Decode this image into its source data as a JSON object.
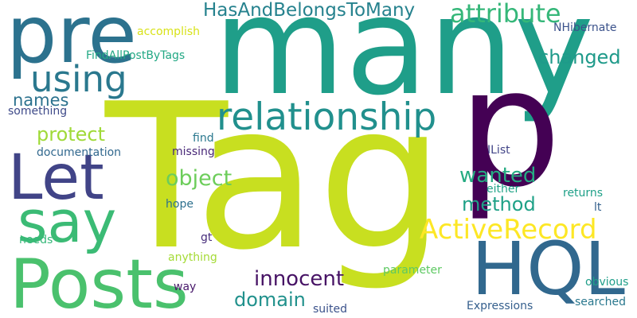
{
  "words": [
    {
      "text": "Tag",
      "color": "#c8df20"
    },
    {
      "text": "many",
      "color": "#1f9e89"
    },
    {
      "text": "p",
      "color": "#440154"
    },
    {
      "text": "pre",
      "color": "#2c728e"
    },
    {
      "text": "Posts",
      "color": "#4ac16d"
    },
    {
      "text": "Let",
      "color": "#414487"
    },
    {
      "text": "say",
      "color": "#3bbb75"
    },
    {
      "text": "HQL",
      "color": "#31688e"
    },
    {
      "text": "relationship",
      "color": "#21908d"
    },
    {
      "text": "using",
      "color": "#2a788e"
    },
    {
      "text": "ActiveRecord",
      "color": "#fde725"
    },
    {
      "text": "HasAndBelongsToMany",
      "color": "#26828e"
    },
    {
      "text": "attribute",
      "color": "#35b779"
    },
    {
      "text": "changed",
      "color": "#1f9a8a"
    },
    {
      "text": "innocent",
      "color": "#471365"
    },
    {
      "text": "protect",
      "color": "#a0da39"
    },
    {
      "text": "object",
      "color": "#6ccd5a"
    },
    {
      "text": "wanted",
      "color": "#25ab82"
    },
    {
      "text": "method",
      "color": "#1fa187"
    },
    {
      "text": "names",
      "color": "#2c728e"
    },
    {
      "text": "domain",
      "color": "#21918c"
    },
    {
      "text": "accomplish",
      "color": "#d8e219"
    },
    {
      "text": "NHibernate",
      "color": "#3b528b"
    },
    {
      "text": "FindAllPostByTags",
      "color": "#22a884"
    },
    {
      "text": "something",
      "color": "#3e4a89"
    },
    {
      "text": "documentation",
      "color": "#31688e"
    },
    {
      "text": "find",
      "color": "#2a788e"
    },
    {
      "text": "missing",
      "color": "#482878"
    },
    {
      "text": "IList",
      "color": "#414487"
    },
    {
      "text": "either",
      "color": "#20a386"
    },
    {
      "text": "returns",
      "color": "#1fa088"
    },
    {
      "text": "lt",
      "color": "#34618d"
    },
    {
      "text": "hope",
      "color": "#2d708e"
    },
    {
      "text": "gt",
      "color": "#472d7b"
    },
    {
      "text": "needs",
      "color": "#35b779"
    },
    {
      "text": "anything",
      "color": "#a5db36"
    },
    {
      "text": "parameter",
      "color": "#5ec962"
    },
    {
      "text": "way",
      "color": "#48186a"
    },
    {
      "text": "suited",
      "color": "#3b528b"
    },
    {
      "text": "Expressions",
      "color": "#355f8d"
    },
    {
      "text": "obvious",
      "color": "#1f9e89"
    },
    {
      "text": "searched",
      "color": "#2a788e"
    }
  ]
}
